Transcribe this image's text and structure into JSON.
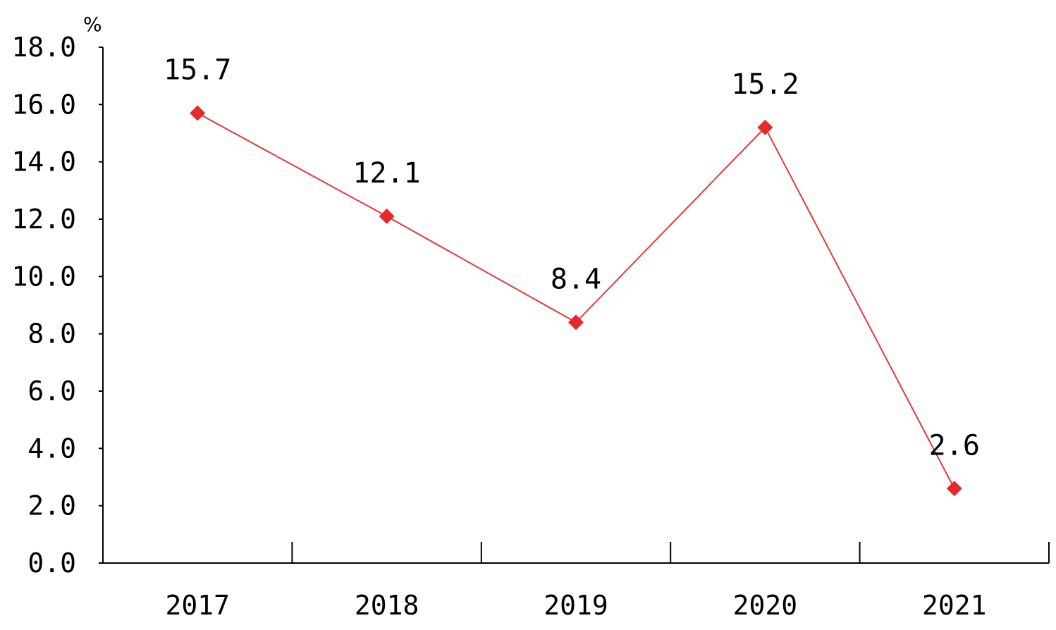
{
  "chart_data": {
    "type": "line",
    "categories": [
      "2017",
      "2018",
      "2019",
      "2020",
      "2021"
    ],
    "series": [
      {
        "values": [
          15.7,
          12.1,
          8.4,
          15.2,
          2.6
        ]
      }
    ],
    "data_labels": [
      "15.7",
      "12.1",
      "8.4",
      "15.2",
      "2.6"
    ],
    "y_ticks": [
      "0.0",
      "2.0",
      "4.0",
      "6.0",
      "8.0",
      "10.0",
      "12.0",
      "14.0",
      "16.0",
      "18.0"
    ],
    "ylim": [
      0,
      18
    ],
    "y_unit": "%",
    "grid": false,
    "colors": {
      "series": "#e8383b",
      "marker": "#e8282b",
      "axis": "#000000"
    }
  }
}
